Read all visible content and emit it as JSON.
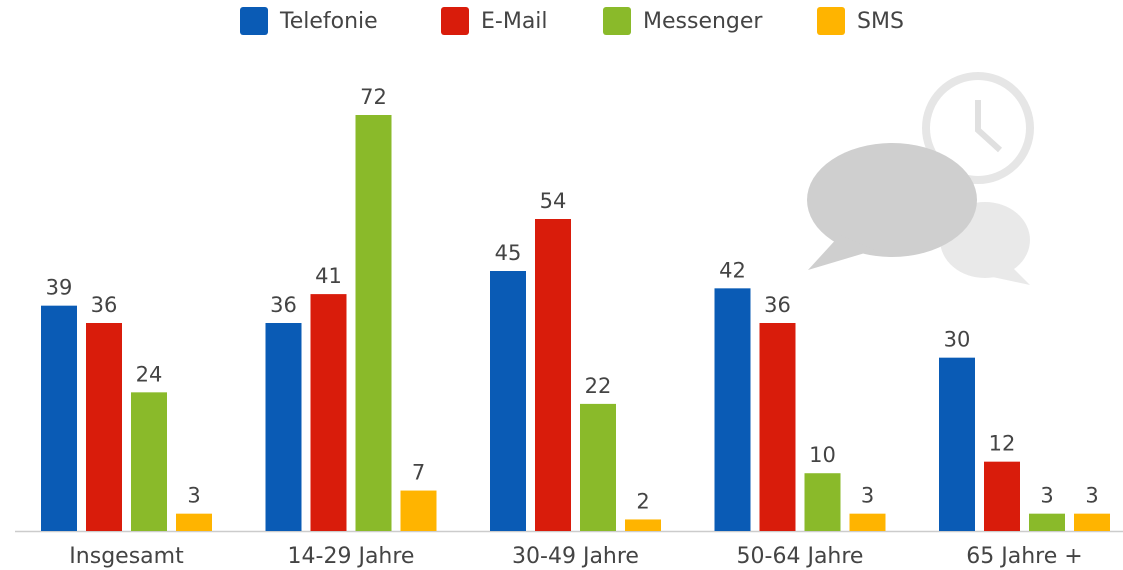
{
  "chart_data": {
    "type": "bar",
    "categories": [
      "Insgesamt",
      "14-29 Jahre",
      "30-49 Jahre",
      "50-64 Jahre",
      "65 Jahre +"
    ],
    "series": [
      {
        "name": "Telefonie",
        "color": "#0a5bb5",
        "values": [
          39,
          36,
          45,
          42,
          30
        ]
      },
      {
        "name": "E-Mail",
        "color": "#d91c0b",
        "values": [
          36,
          41,
          54,
          36,
          12
        ]
      },
      {
        "name": "Messenger",
        "color": "#8aba2a",
        "values": [
          24,
          72,
          22,
          10,
          3
        ]
      },
      {
        "name": "SMS",
        "color": "#ffb400",
        "values": [
          3,
          7,
          2,
          3,
          3
        ]
      }
    ]
  }
}
